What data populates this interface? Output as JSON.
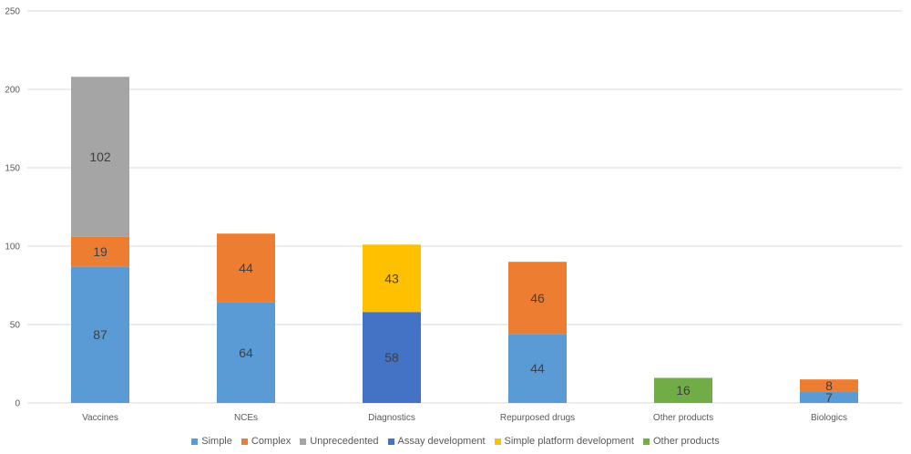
{
  "chart_data": {
    "type": "bar",
    "stacked": true,
    "categories": [
      "Vaccines",
      "NCEs",
      "Diagnostics",
      "Repurposed drugs",
      "Other products",
      "Biologics"
    ],
    "ylim": [
      0,
      250
    ],
    "yticks": [
      0,
      50,
      100,
      150,
      200,
      250
    ],
    "grid": true,
    "legend_position": "bottom",
    "series": [
      {
        "name": "Simple",
        "color": "#5B9BD5",
        "values": [
          87,
          64,
          null,
          44,
          null,
          7
        ]
      },
      {
        "name": "Complex",
        "color": "#ED7D31",
        "values": [
          19,
          44,
          null,
          46,
          null,
          8
        ]
      },
      {
        "name": "Unprecedented",
        "color": "#A5A5A5",
        "values": [
          102,
          null,
          null,
          null,
          null,
          null
        ]
      },
      {
        "name": "Assay development",
        "color": "#4472C4",
        "values": [
          null,
          null,
          58,
          null,
          null,
          null
        ]
      },
      {
        "name": "Simple platform development",
        "color": "#FFC000",
        "values": [
          null,
          null,
          43,
          null,
          null,
          null
        ]
      },
      {
        "name": "Other products",
        "color": "#70AD47",
        "values": [
          null,
          null,
          null,
          null,
          16,
          null
        ]
      }
    ]
  }
}
